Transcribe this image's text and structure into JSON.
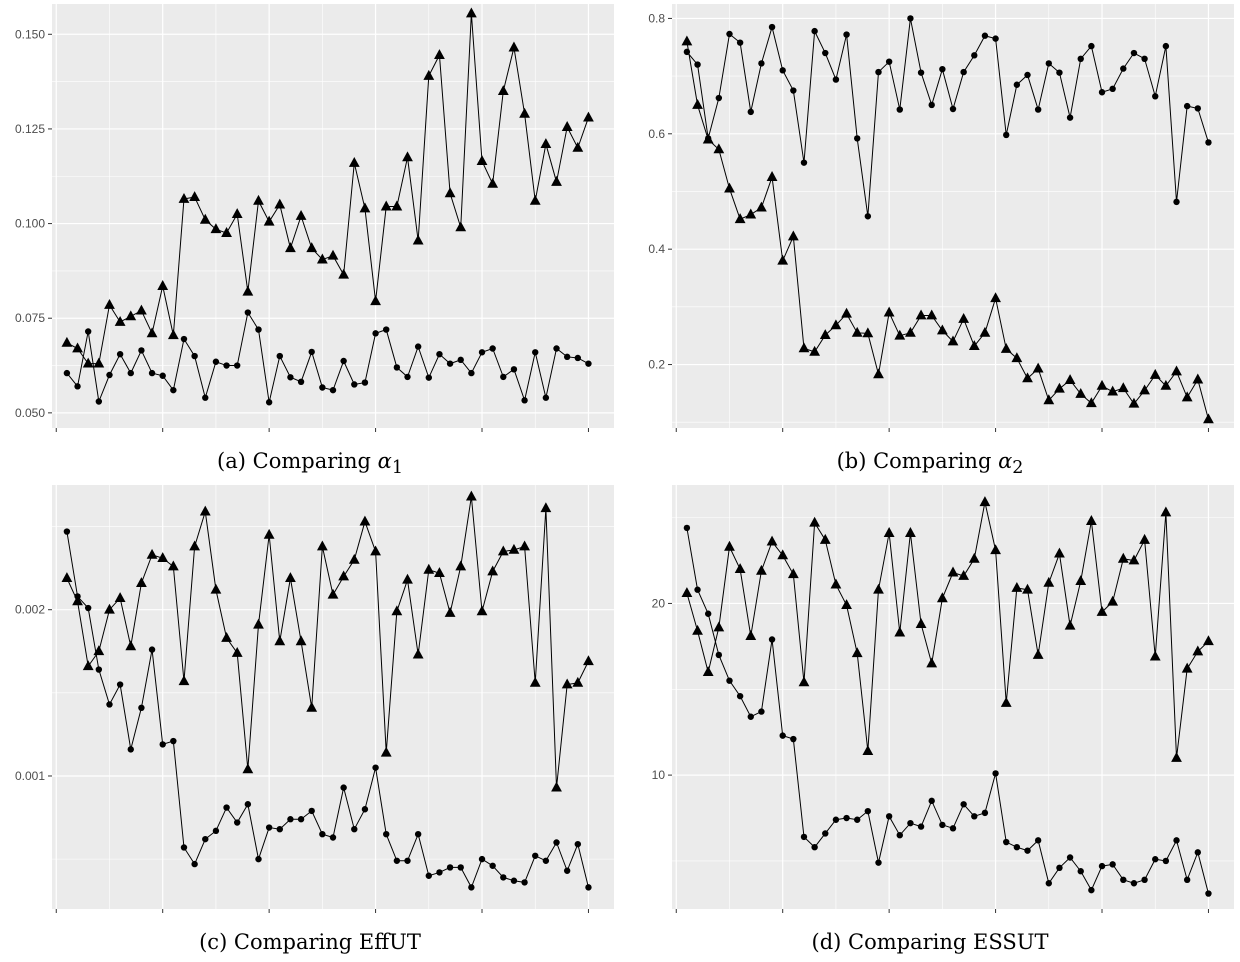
{
  "chart_data": [
    {
      "type": "line",
      "panel": "a",
      "caption_prefix": "(a) Comparing ",
      "caption_symbol": "α",
      "caption_sub": "1",
      "ylim": [
        0.046,
        0.158
      ],
      "yticks": [
        0.05,
        0.075,
        0.1,
        0.125,
        0.15
      ],
      "ytick_labels": [
        "0.050",
        "0.075",
        "0.100",
        "0.125",
        "0.150"
      ],
      "grid": true,
      "x": [
        1,
        2,
        3,
        4,
        5,
        6,
        7,
        8,
        9,
        10,
        11,
        12,
        13,
        14,
        15,
        16,
        17,
        18,
        19,
        20,
        21,
        22,
        23,
        24,
        25,
        26,
        27,
        28,
        29,
        30,
        31,
        32,
        33,
        34,
        35,
        36,
        37,
        38,
        39,
        40,
        41,
        42,
        43,
        44,
        45,
        46,
        47,
        48,
        49,
        50,
        51
      ],
      "series": [
        {
          "marker": "triangle",
          "values": [
            0.0685,
            0.067,
            0.063,
            0.063,
            0.0785,
            0.074,
            0.0755,
            0.077,
            0.071,
            0.0835,
            0.0705,
            0.1065,
            0.107,
            0.101,
            0.0985,
            0.0975,
            0.1025,
            0.082,
            0.106,
            0.1005,
            0.105,
            0.0935,
            0.102,
            0.0935,
            0.0905,
            0.0915,
            0.0865,
            0.116,
            0.104,
            0.0795,
            0.1045,
            0.1045,
            0.1175,
            0.0955,
            0.139,
            0.1445,
            0.108,
            0.099,
            0.1555,
            0.1165,
            0.1105,
            0.135,
            0.1465,
            0.129,
            0.106,
            0.121,
            0.111,
            0.1255,
            0.12,
            0.128,
            null
          ]
        },
        {
          "marker": "circle",
          "values": [
            0.0605,
            0.057,
            0.0715,
            0.053,
            0.06,
            0.0655,
            0.0605,
            0.0665,
            0.0605,
            0.0598,
            0.056,
            0.0695,
            0.065,
            0.054,
            0.0635,
            0.0625,
            0.0625,
            0.0765,
            0.072,
            0.0528,
            0.065,
            0.0594,
            0.0582,
            0.0661,
            0.0567,
            0.056,
            0.0637,
            0.0575,
            0.058,
            0.071,
            0.072,
            0.062,
            0.0595,
            0.0675,
            0.0593,
            0.0655,
            0.063,
            0.064,
            0.0605,
            0.066,
            0.067,
            0.0595,
            0.0615,
            0.0533,
            0.066,
            0.054,
            0.067,
            0.0648,
            0.0645,
            0.063,
            null
          ]
        }
      ]
    },
    {
      "type": "line",
      "panel": "b",
      "caption_prefix": "(b) Comparing ",
      "caption_symbol": "α",
      "caption_sub": "2",
      "ylim": [
        0.09,
        0.825
      ],
      "yticks": [
        0.2,
        0.4,
        0.6,
        0.8
      ],
      "ytick_labels": [
        "0.2",
        "0.4",
        "0.6",
        "0.8"
      ],
      "grid": true,
      "x": [
        1,
        2,
        3,
        4,
        5,
        6,
        7,
        8,
        9,
        10,
        11,
        12,
        13,
        14,
        15,
        16,
        17,
        18,
        19,
        20,
        21,
        22,
        23,
        24,
        25,
        26,
        27,
        28,
        29,
        30,
        31,
        32,
        33,
        34,
        35,
        36,
        37,
        38,
        39,
        40,
        41,
        42,
        43,
        44,
        45,
        46,
        47,
        48,
        49,
        50,
        51
      ],
      "series": [
        {
          "marker": "triangle",
          "values": [
            0.76,
            0.65,
            0.59,
            0.573,
            0.505,
            0.452,
            0.46,
            0.472,
            0.525,
            0.38,
            0.422,
            0.228,
            0.222,
            0.251,
            0.268,
            0.288,
            0.255,
            0.254,
            0.183,
            0.29,
            0.25,
            0.255,
            0.285,
            0.285,
            0.259,
            0.24,
            0.279,
            0.232,
            0.255,
            0.315,
            0.227,
            0.211,
            0.176,
            0.193,
            0.138,
            0.158,
            0.173,
            0.149,
            0.133,
            0.163,
            0.153,
            0.159,
            0.132,
            0.155,
            0.182,
            0.163,
            0.188,
            0.143,
            0.174,
            0.105,
            null
          ]
        },
        {
          "marker": "circle",
          "values": [
            0.742,
            0.72,
            0.592,
            0.662,
            0.773,
            0.758,
            0.638,
            0.722,
            0.785,
            0.71,
            0.675,
            0.55,
            0.778,
            0.74,
            0.694,
            0.772,
            0.592,
            0.457,
            0.707,
            0.725,
            0.642,
            0.8,
            0.706,
            0.65,
            0.712,
            0.643,
            0.707,
            0.736,
            0.77,
            0.765,
            0.598,
            0.685,
            0.702,
            0.642,
            0.722,
            0.706,
            0.628,
            0.73,
            0.752,
            0.672,
            0.678,
            0.713,
            0.74,
            0.73,
            0.665,
            0.752,
            0.482,
            0.648,
            0.644,
            0.585,
            null
          ]
        }
      ]
    },
    {
      "type": "line",
      "panel": "c",
      "caption_prefix": "(c) Comparing EffUT",
      "caption_symbol": "",
      "caption_sub": "",
      "ylim": [
        0.0002,
        0.00275
      ],
      "yticks": [
        0.001,
        0.002
      ],
      "ytick_labels": [
        "0.001",
        "0.002"
      ],
      "grid": true,
      "x": [
        1,
        2,
        3,
        4,
        5,
        6,
        7,
        8,
        9,
        10,
        11,
        12,
        13,
        14,
        15,
        16,
        17,
        18,
        19,
        20,
        21,
        22,
        23,
        24,
        25,
        26,
        27,
        28,
        29,
        30,
        31,
        32,
        33,
        34,
        35,
        36,
        37,
        38,
        39,
        40,
        41,
        42,
        43,
        44,
        45,
        46,
        47,
        48,
        49,
        50,
        51
      ],
      "series": [
        {
          "marker": "triangle",
          "values": [
            0.00219,
            0.00205,
            0.00166,
            0.00175,
            0.002,
            0.00207,
            0.00178,
            0.00216,
            0.00233,
            0.00231,
            0.00226,
            0.00157,
            0.00238,
            0.00259,
            0.00212,
            0.00183,
            0.00174,
            0.00104,
            0.00191,
            0.00245,
            0.00181,
            0.00219,
            0.00181,
            0.00141,
            0.00238,
            0.00209,
            0.0022,
            0.0023,
            0.00253,
            0.00235,
            0.00114,
            0.00199,
            0.00218,
            0.00173,
            0.00224,
            0.00222,
            0.00198,
            0.00226,
            0.00268,
            0.00199,
            0.00223,
            0.00235,
            0.00236,
            0.00238,
            0.00156,
            0.00261,
            0.00093,
            0.00155,
            0.00156,
            0.00169,
            null
          ]
        },
        {
          "marker": "circle",
          "values": [
            0.00247,
            0.00208,
            0.00201,
            0.00164,
            0.00143,
            0.00155,
            0.00116,
            0.00141,
            0.00176,
            0.00119,
            0.00121,
            0.00057,
            0.00047,
            0.00062,
            0.00067,
            0.00081,
            0.00072,
            0.00083,
            0.0005,
            0.00069,
            0.00068,
            0.00074,
            0.00074,
            0.00079,
            0.00065,
            0.00063,
            0.00093,
            0.00068,
            0.0008,
            0.00105,
            0.00065,
            0.00049,
            0.00049,
            0.00065,
            0.0004,
            0.00042,
            0.00045,
            0.00045,
            0.00033,
            0.0005,
            0.00046,
            0.00039,
            0.00037,
            0.00036,
            0.00052,
            0.00049,
            0.0006,
            0.00043,
            0.00059,
            0.00033,
            null
          ]
        }
      ]
    },
    {
      "type": "line",
      "panel": "d",
      "caption_prefix": "(d) Comparing ESSUT",
      "caption_symbol": "",
      "caption_sub": "",
      "ylim": [
        2.2,
        26.9
      ],
      "yticks": [
        10,
        20
      ],
      "ytick_labels": [
        "10",
        "20"
      ],
      "grid": true,
      "x": [
        1,
        2,
        3,
        4,
        5,
        6,
        7,
        8,
        9,
        10,
        11,
        12,
        13,
        14,
        15,
        16,
        17,
        18,
        19,
        20,
        21,
        22,
        23,
        24,
        25,
        26,
        27,
        28,
        29,
        30,
        31,
        32,
        33,
        34,
        35,
        36,
        37,
        38,
        39,
        40,
        41,
        42,
        43,
        44,
        45,
        46,
        47,
        48,
        49,
        50,
        51
      ],
      "series": [
        {
          "marker": "triangle",
          "values": [
            20.6,
            18.4,
            16,
            18.6,
            23.3,
            22,
            18.1,
            21.9,
            23.6,
            22.8,
            21.7,
            15.4,
            24.7,
            23.7,
            21.1,
            19.9,
            17.1,
            11.4,
            20.8,
            24.1,
            18.3,
            24.1,
            18.8,
            16.5,
            20.3,
            21.8,
            21.6,
            22.6,
            25.9,
            23.1,
            14.2,
            20.9,
            20.8,
            17,
            21.2,
            22.9,
            18.7,
            21.3,
            24.8,
            19.5,
            20.1,
            22.6,
            22.5,
            23.7,
            16.9,
            25.3,
            11,
            16.2,
            17.2,
            17.8,
            null
          ]
        },
        {
          "marker": "circle",
          "values": [
            24.4,
            20.8,
            19.4,
            17,
            15.5,
            14.6,
            13.4,
            13.7,
            17.9,
            12.3,
            12.1,
            6.4,
            5.8,
            6.6,
            7.4,
            7.5,
            7.4,
            7.9,
            4.9,
            7.6,
            6.5,
            7.2,
            7,
            8.5,
            7.1,
            6.9,
            8.3,
            7.6,
            7.8,
            10.1,
            6.1,
            5.8,
            5.6,
            6.2,
            3.7,
            4.6,
            5.2,
            4.4,
            3.3,
            4.7,
            4.8,
            3.9,
            3.7,
            3.9,
            5.1,
            5,
            6.2,
            3.9,
            5.5,
            3.1,
            null
          ]
        }
      ]
    }
  ]
}
